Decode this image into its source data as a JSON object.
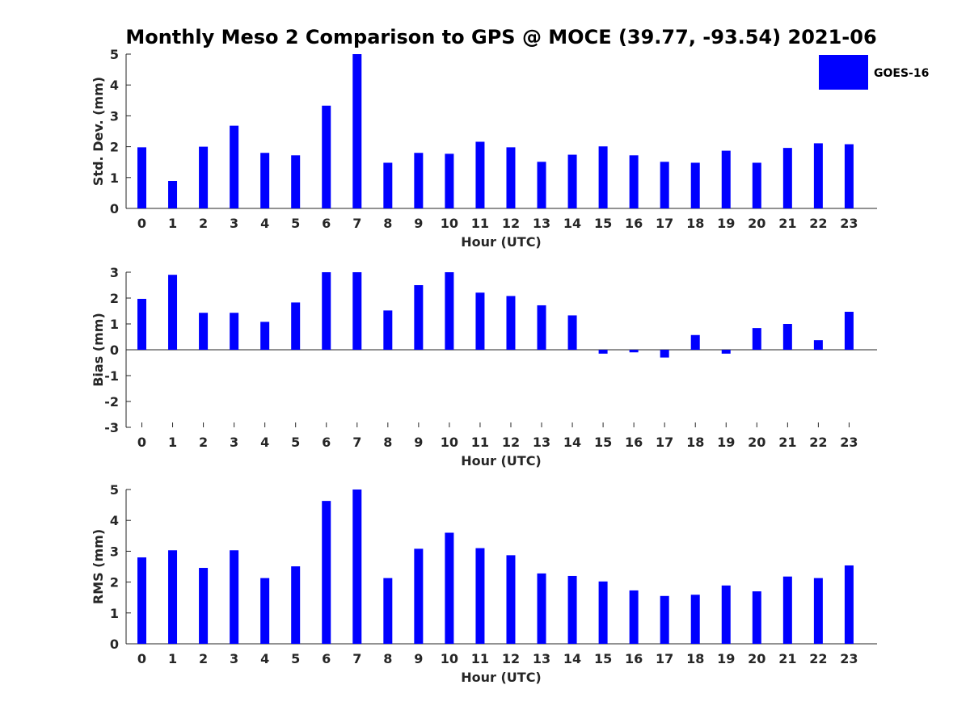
{
  "title": "Monthly Meso 2 Comparison to GPS @ MOCE (39.77, -93.54) 2021-06",
  "legend": {
    "label": "GOES-16",
    "color": "#0000ff",
    "placement": "top-right"
  },
  "chart_data": [
    {
      "type": "bar",
      "xlabel": "Hour (UTC)",
      "ylabel": "Std. Dev. (mm)",
      "ylim": [
        0,
        5
      ],
      "yticks": [
        0,
        1,
        2,
        3,
        4,
        5
      ],
      "categories": [
        0,
        1,
        2,
        3,
        4,
        5,
        6,
        7,
        8,
        9,
        10,
        11,
        12,
        13,
        14,
        15,
        16,
        17,
        18,
        19,
        20,
        21,
        22,
        23
      ],
      "series": [
        {
          "name": "GOES-16",
          "color": "#0000ff",
          "values": [
            1.98,
            0.89,
            2.0,
            2.68,
            1.8,
            1.72,
            3.33,
            5.0,
            1.48,
            1.8,
            1.77,
            2.16,
            1.98,
            1.51,
            1.74,
            2.01,
            1.72,
            1.51,
            1.48,
            1.87,
            1.48,
            1.96,
            2.11,
            2.08
          ]
        }
      ]
    },
    {
      "type": "bar",
      "xlabel": "Hour (UTC)",
      "ylabel": "Bias (mm)",
      "ylim": [
        -3,
        3
      ],
      "yticks": [
        -3,
        -2,
        -1,
        0,
        1,
        2,
        3
      ],
      "categories": [
        0,
        1,
        2,
        3,
        4,
        5,
        6,
        7,
        8,
        9,
        10,
        11,
        12,
        13,
        14,
        15,
        16,
        17,
        18,
        19,
        20,
        21,
        22,
        23
      ],
      "series": [
        {
          "name": "GOES-16",
          "color": "#0000ff",
          "values": [
            1.97,
            2.9,
            1.43,
            1.43,
            1.08,
            1.83,
            3.0,
            3.0,
            1.52,
            2.5,
            3.0,
            2.21,
            2.08,
            1.72,
            1.33,
            -0.15,
            -0.1,
            -0.3,
            0.57,
            -0.15,
            0.84,
            1.0,
            0.37,
            1.47
          ]
        }
      ]
    },
    {
      "type": "bar",
      "xlabel": "Hour (UTC)",
      "ylabel": "RMS (mm)",
      "ylim": [
        0,
        5
      ],
      "yticks": [
        0,
        1,
        2,
        3,
        4,
        5
      ],
      "categories": [
        0,
        1,
        2,
        3,
        4,
        5,
        6,
        7,
        8,
        9,
        10,
        11,
        12,
        13,
        14,
        15,
        16,
        17,
        18,
        19,
        20,
        21,
        22,
        23
      ],
      "series": [
        {
          "name": "GOES-16",
          "color": "#0000ff",
          "values": [
            2.8,
            3.03,
            2.46,
            3.03,
            2.13,
            2.51,
            4.63,
            5.0,
            2.13,
            3.08,
            3.6,
            3.1,
            2.87,
            2.28,
            2.2,
            2.02,
            1.73,
            1.55,
            1.59,
            1.89,
            1.7,
            2.18,
            2.13,
            2.54
          ]
        }
      ]
    }
  ]
}
